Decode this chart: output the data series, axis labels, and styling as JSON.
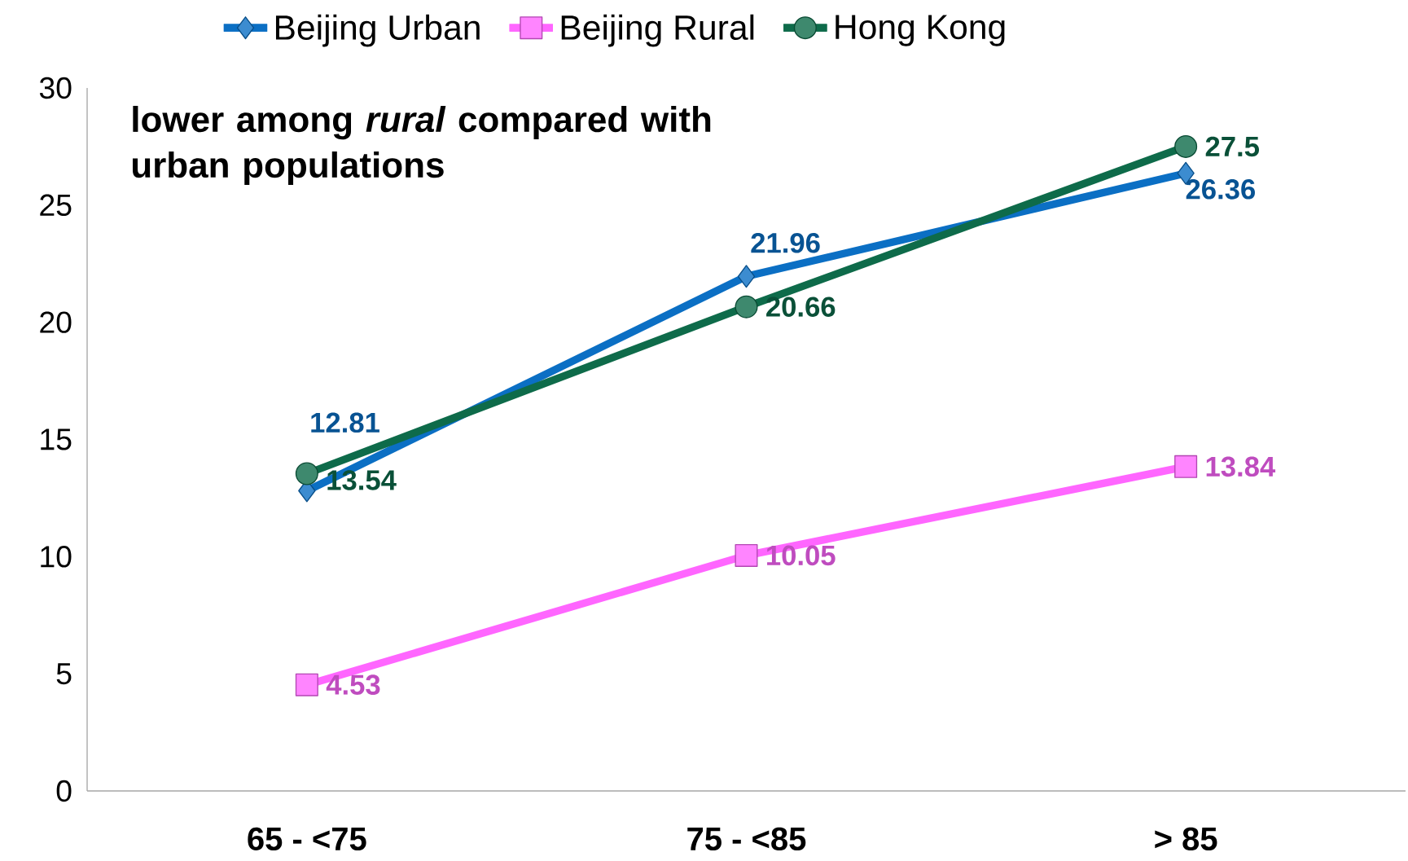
{
  "chart_data": {
    "type": "line",
    "categories": [
      "65 - <75",
      "75 - <85",
      "> 85"
    ],
    "series": [
      {
        "name": "Beijing Urban",
        "color": "#0b6fc4",
        "marker": "diamond",
        "values": [
          12.81,
          21.96,
          26.36
        ]
      },
      {
        "name": "Beijing Rural",
        "color": "#ff66ff",
        "marker": "square",
        "values": [
          4.53,
          10.05,
          13.84
        ]
      },
      {
        "name": "Hong Kong",
        "color": "#0e6b4a",
        "marker": "circle",
        "values": [
          13.54,
          20.66,
          27.5
        ]
      }
    ],
    "ylim": [
      0,
      30
    ],
    "yticks": [
      0,
      5,
      10,
      15,
      20,
      25,
      30
    ],
    "grid": false,
    "legend": "top",
    "data_labels": true,
    "line_style": "solid",
    "annotations": [
      "lower among *rural* compared with urban populations"
    ]
  }
}
